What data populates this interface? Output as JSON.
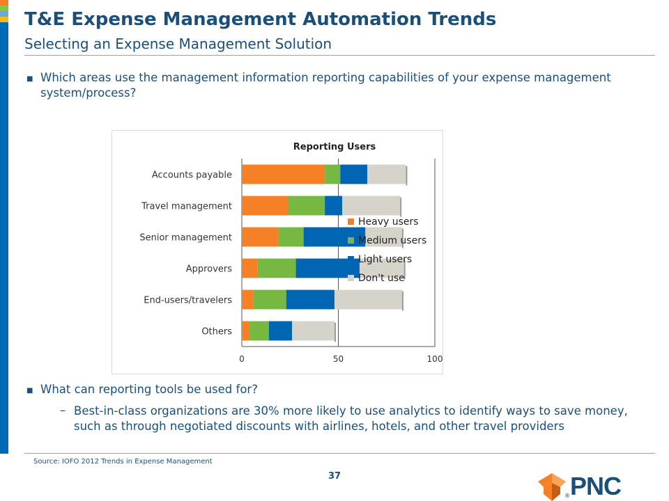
{
  "header": {
    "title": "T&E Expense Management Automation Trends",
    "subtitle": "Selecting an Expense Management Solution"
  },
  "bullets": {
    "q1": "Which areas use the management information reporting capabilities of your expense management system/process?",
    "q2": "What can reporting tools be used for?",
    "q2_sub": "Best-in-class organizations are 30% more likely to use analytics to identify ways to save money, such as through negotiated discounts with airlines, hotels, and other travel providers"
  },
  "footer": {
    "source": "Source: IOFO 2012 Trends in Expense Management",
    "page_number": "37",
    "logo_text": "PNC"
  },
  "colors": {
    "heavy": "#f58025",
    "medium": "#77b843",
    "light": "#0066b3",
    "dont_use": "#d6d3cb"
  },
  "chart_data": {
    "type": "bar",
    "orientation": "horizontal",
    "stacked": true,
    "title": "Reporting Users",
    "categories": [
      "Accounts payable",
      "Travel management",
      "Senior management",
      "Approvers",
      "End-users/travelers",
      "Others"
    ],
    "series": [
      {
        "name": "Heavy users",
        "values": [
          43,
          24,
          19,
          8,
          6,
          4
        ]
      },
      {
        "name": "Medium users",
        "values": [
          8,
          19,
          13,
          20,
          17,
          10
        ]
      },
      {
        "name": "Light users",
        "values": [
          14,
          9,
          32,
          33,
          25,
          12
        ]
      },
      {
        "name": "Don't use",
        "values": [
          20,
          30,
          19,
          23,
          35,
          22
        ]
      }
    ],
    "xticks": [
      "0",
      "50",
      "100"
    ],
    "xlim": [
      0,
      100
    ],
    "legend_position": "right"
  }
}
